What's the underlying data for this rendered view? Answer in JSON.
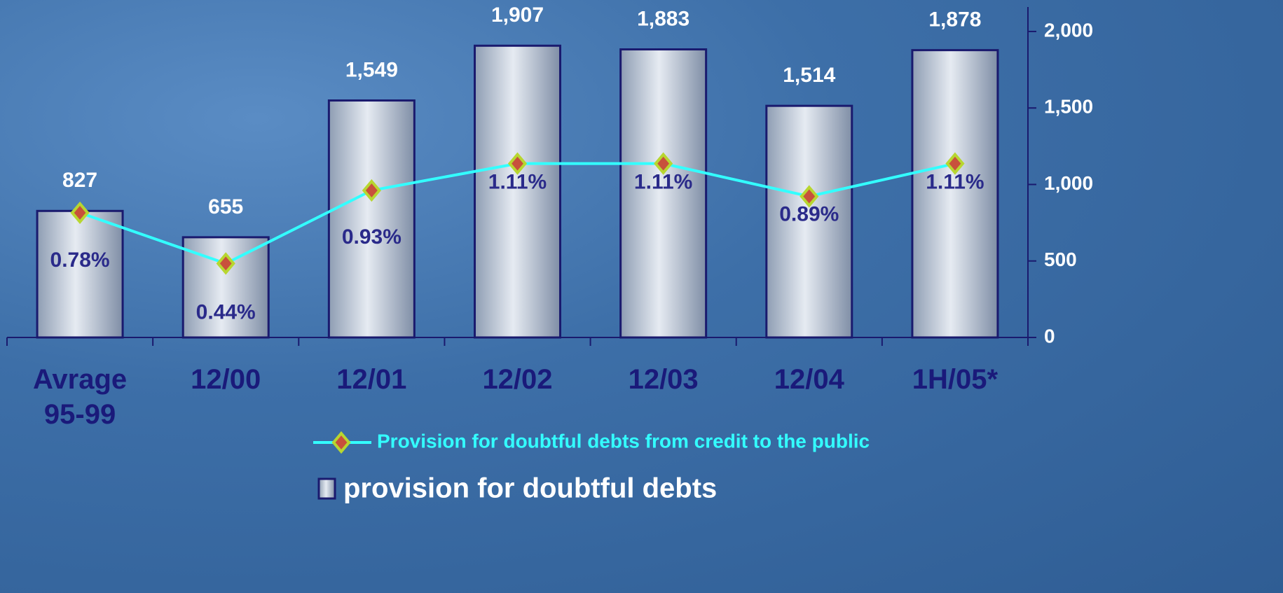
{
  "chart_data": {
    "type": "bar",
    "categories": [
      "Avrage 95-99",
      "12/00",
      "12/01",
      "12/02",
      "12/03",
      "12/04",
      "1H/05*"
    ],
    "series": [
      {
        "name": "provision for doubtful debts",
        "type": "bar",
        "color": "#c9d3df",
        "values": [
          827,
          655,
          1549,
          1907,
          1883,
          1514,
          1878
        ],
        "value_labels": [
          "827",
          "655",
          "1,549",
          "1,907",
          "1,883",
          "1,514",
          "1,878"
        ]
      },
      {
        "name": "Provision for doubtful debts from credit to the public",
        "type": "line",
        "color": "#33ffff",
        "axis": "y2",
        "values": [
          0.78,
          0.44,
          0.93,
          1.11,
          1.11,
          0.89,
          1.11
        ],
        "value_labels": [
          "0.78%",
          "0.44%",
          "0.93%",
          "1.11%",
          "1.11%",
          "0.89%",
          "1.11%"
        ]
      }
    ],
    "ylim": [
      0,
      2160
    ],
    "yticks": [
      0,
      500,
      {
        "value": 1000,
        "label": "1,000"
      },
      {
        "value": 1500,
        "label": "1,500"
      },
      {
        "value": 2000,
        "label": "2,000"
      }
    ],
    "y2lim": [
      -0.056,
      2.16
    ],
    "y_axis_side": "right"
  }
}
